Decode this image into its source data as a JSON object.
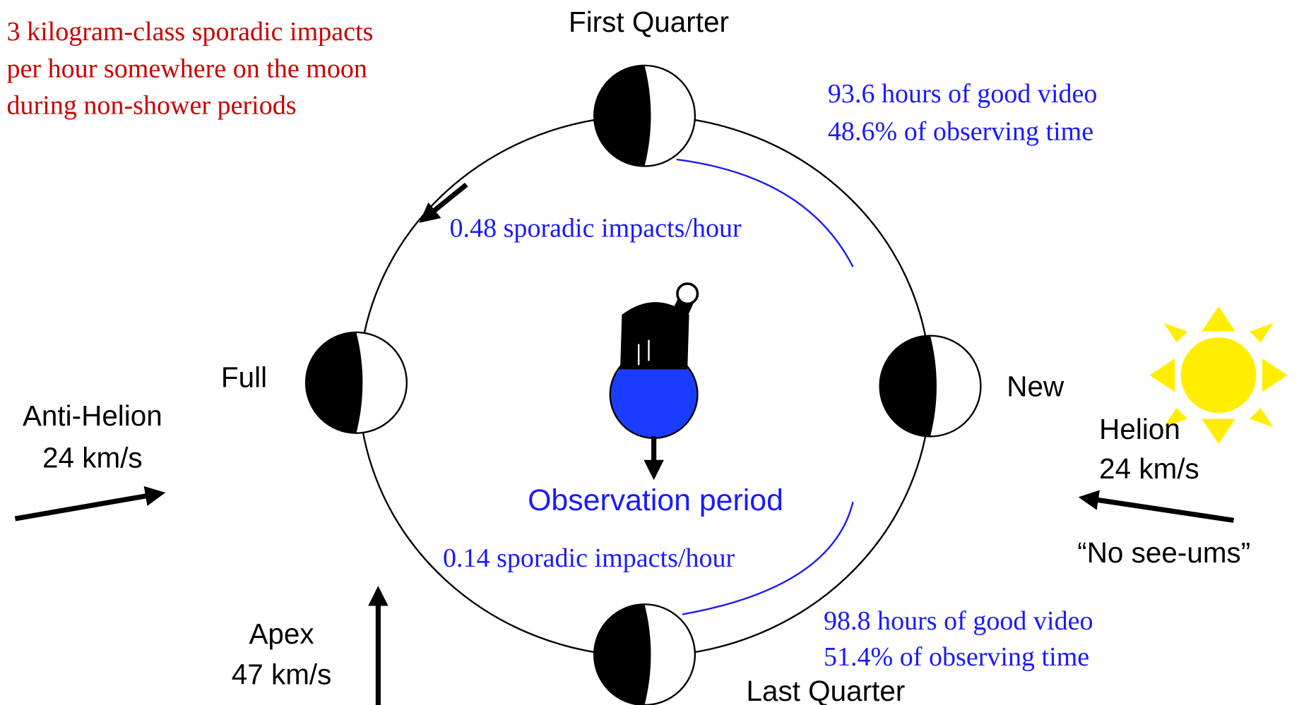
{
  "note": {
    "lines": [
      "3 kilogram-class sporadic impacts",
      "per hour somewhere on the moon",
      "during non-shower periods"
    ]
  },
  "phases": {
    "first_quarter": "First Quarter",
    "full": "Full",
    "new": "New",
    "last_quarter": "Last Quarter"
  },
  "upper": {
    "video": "93.6 hours of good video",
    "share": "48.6% of observing time",
    "rate": "0.48 sporadic impacts/hour"
  },
  "lower": {
    "video": "98.8 hours of good video",
    "share": "51.4% of observing time",
    "rate": "0.14 sporadic impacts/hour"
  },
  "observation": "Observation period",
  "sources": {
    "anti_helion": [
      "Anti-Helion",
      "24 km/s"
    ],
    "helion": [
      "Helion",
      "24 km/s"
    ],
    "apex": [
      "Apex",
      "47 km/s"
    ],
    "no_see_ums": "“No see-ums”"
  }
}
